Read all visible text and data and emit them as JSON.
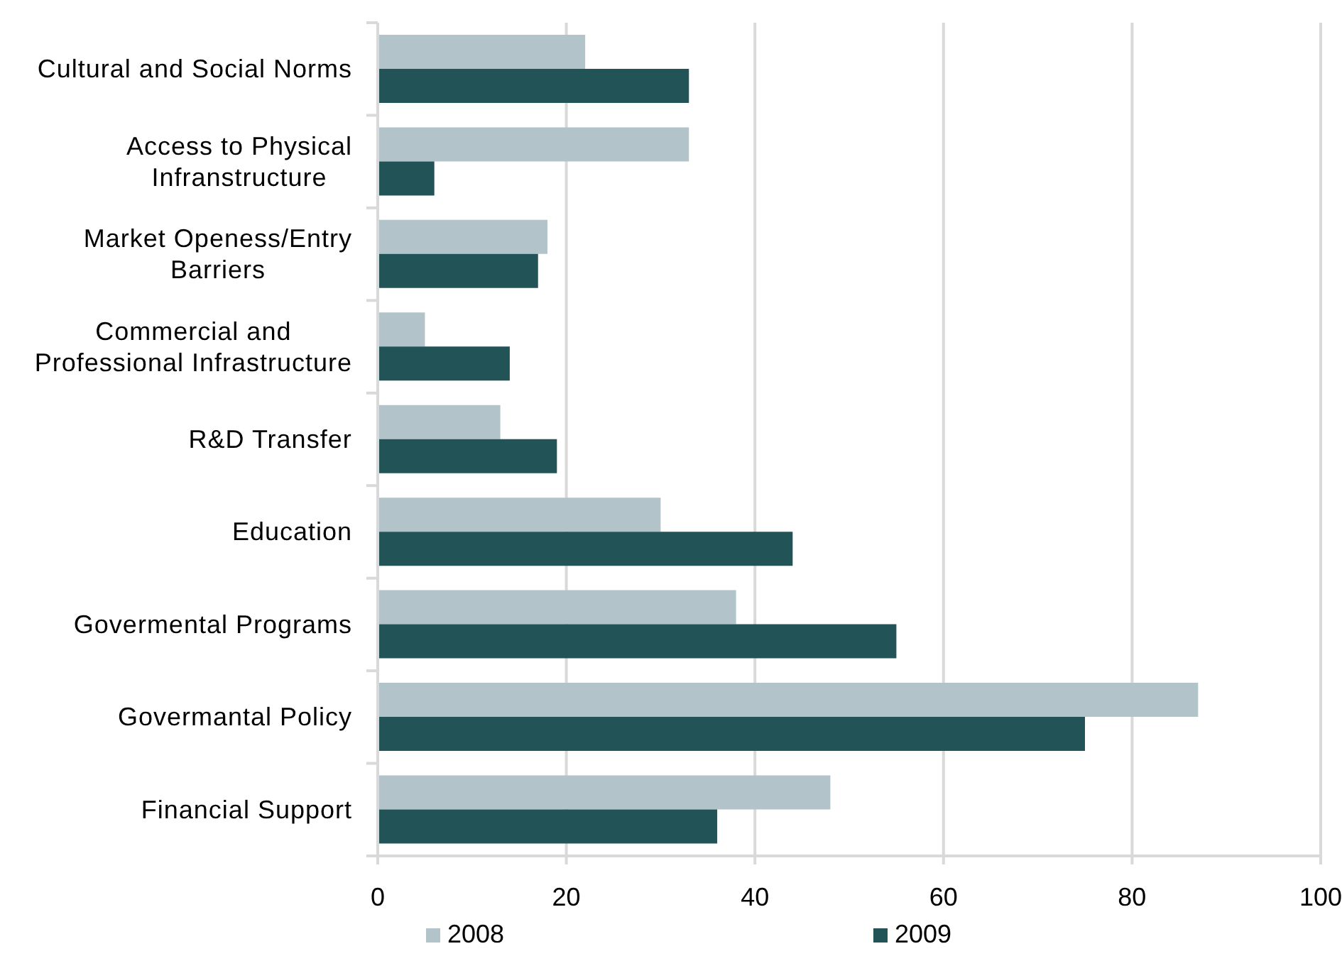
{
  "chart_data": {
    "type": "bar",
    "orientation": "horizontal",
    "categories": [
      "Cultural and Social Norms",
      "Access to Physical Infranstructure",
      "Market Openess/Entry Barriers",
      "Commercial and Professional Infrastructure",
      "R&D Transfer",
      "Education",
      "Govermental Programs",
      "Govermantal Policy",
      "Financial Support"
    ],
    "series": [
      {
        "name": "2008",
        "color": "#b2c4c9",
        "values": [
          22,
          33,
          18,
          5,
          13,
          30,
          38,
          87,
          48
        ]
      },
      {
        "name": "2009",
        "color": "#215357",
        "values": [
          33,
          6,
          17,
          14,
          19,
          44,
          55,
          75,
          36
        ]
      }
    ],
    "xlim": [
      0,
      100
    ],
    "xticks": [
      0,
      20,
      40,
      60,
      80,
      100
    ],
    "grid": "x",
    "legend": "bottom"
  }
}
